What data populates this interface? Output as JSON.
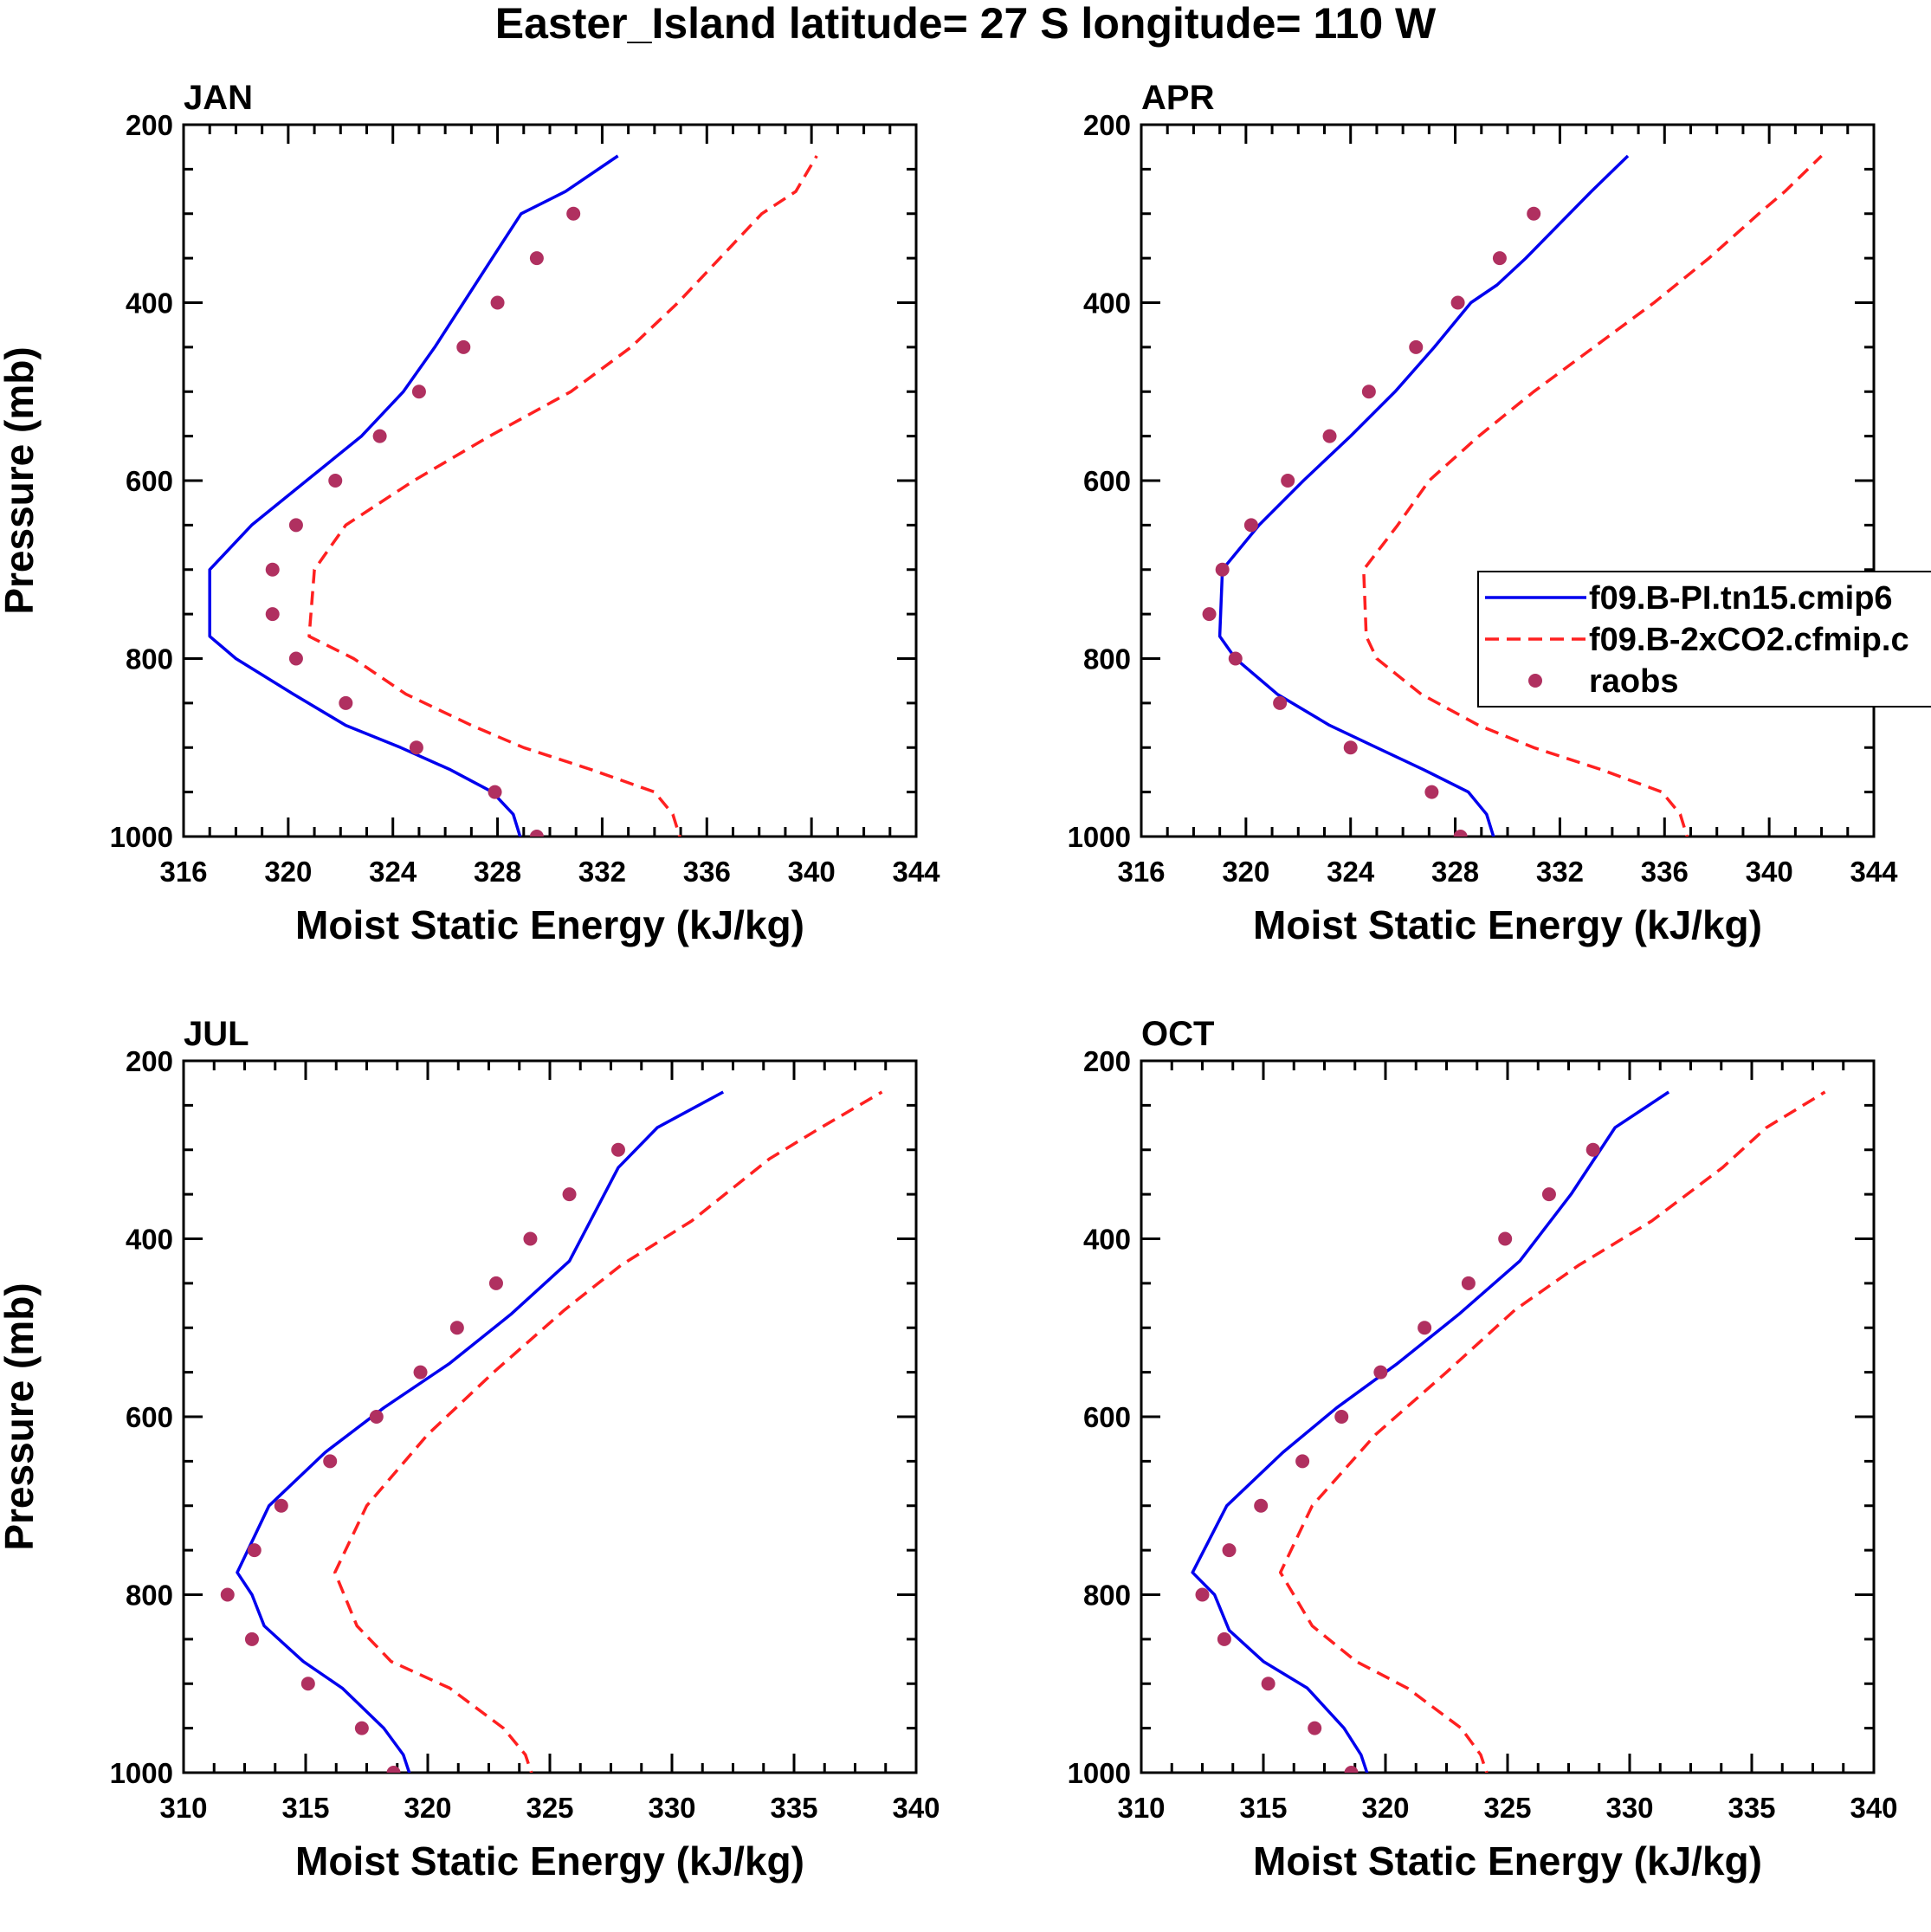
{
  "suptitle": "Easter_Island  latitude= 27 S longitude= 110 W",
  "colors": {
    "pi": "#0000ee",
    "co2": "#ff2020",
    "obs": "#b03060",
    "axis": "#000000"
  },
  "chart_data": [
    {
      "type": "line",
      "title": "JAN",
      "xlabel": "Moist Static Energy (kJ/kg)",
      "ylabel": "Pressure (mb)",
      "xlim": [
        316,
        344
      ],
      "ylim": [
        200,
        1000
      ],
      "y_inverted": true,
      "xticks": [
        316,
        320,
        324,
        328,
        332,
        336,
        340,
        344
      ],
      "yticks": [
        200,
        400,
        600,
        800,
        1000
      ],
      "series": [
        {
          "name": "f09.B-PI.tn15.cmip6",
          "style": "solid",
          "x": [
            329.0,
            328.6,
            327.8,
            326.2,
            324.3,
            322.2,
            320.2,
            318.0,
            317.0,
            317.0,
            318.6,
            320.7,
            322.8,
            324.4,
            325.6,
            326.7,
            327.8,
            328.9,
            330.6,
            332.6
          ],
          "y": [
            1013,
            975,
            950,
            925,
            900,
            875,
            840,
            800,
            775,
            700,
            650,
            600,
            550,
            500,
            450,
            400,
            350,
            300,
            275,
            235
          ]
        },
        {
          "name": "f09.B-2xCO2.cfmip.c",
          "style": "dashed",
          "x": [
            335.1,
            334.7,
            334.0,
            331.6,
            329.0,
            327.0,
            324.5,
            322.5,
            320.8,
            321.0,
            322.2,
            324.8,
            327.7,
            330.8,
            333.1,
            334.9,
            336.5,
            338.1,
            339.4,
            340.2
          ],
          "y": [
            1013,
            975,
            950,
            925,
            900,
            875,
            840,
            800,
            775,
            700,
            650,
            600,
            550,
            500,
            450,
            400,
            350,
            300,
            275,
            235
          ]
        }
      ],
      "points": {
        "name": "raobs",
        "x": [
          329.5,
          327.9,
          324.9,
          322.2,
          320.3,
          319.4,
          319.4,
          320.3,
          321.8,
          323.5,
          325.0,
          326.7,
          328.0,
          329.5,
          330.9
        ],
        "y": [
          1000,
          950,
          900,
          850,
          800,
          750,
          700,
          650,
          600,
          550,
          500,
          450,
          400,
          350,
          300
        ]
      }
    },
    {
      "type": "line",
      "title": "APR",
      "xlabel": "Moist Static Energy (kJ/kg)",
      "ylabel": "",
      "xlim": [
        316,
        344
      ],
      "ylim": [
        200,
        1000
      ],
      "y_inverted": true,
      "xticks": [
        316,
        320,
        324,
        328,
        332,
        336,
        340,
        344
      ],
      "yticks": [
        200,
        400,
        600,
        800,
        1000
      ],
      "series": [
        {
          "name": "f09.B-PI.tn15.cmip6",
          "style": "solid",
          "x": [
            329.6,
            329.2,
            328.5,
            326.8,
            325.0,
            323.2,
            321.2,
            319.6,
            319.0,
            319.1,
            320.5,
            322.2,
            324.0,
            325.7,
            327.2,
            328.6,
            329.6,
            330.7,
            333.2,
            334.6
          ],
          "y": [
            1013,
            975,
            950,
            925,
            900,
            875,
            840,
            800,
            775,
            700,
            650,
            600,
            550,
            500,
            450,
            400,
            380,
            350,
            275,
            235
          ]
        },
        {
          "name": "f09.B-2xCO2.cfmip.c",
          "style": "dashed",
          "x": [
            337.0,
            336.6,
            335.9,
            333.6,
            331.0,
            328.9,
            326.7,
            325.0,
            324.6,
            324.5,
            325.8,
            327.0,
            328.9,
            331.0,
            333.3,
            335.6,
            337.7,
            339.6,
            340.6,
            342.0
          ],
          "y": [
            1013,
            975,
            950,
            925,
            900,
            875,
            840,
            800,
            775,
            700,
            650,
            600,
            550,
            500,
            450,
            400,
            350,
            300,
            275,
            235
          ]
        }
      ],
      "points": {
        "name": "raobs",
        "x": [
          328.2,
          327.1,
          324.0,
          321.3,
          319.6,
          318.6,
          319.1,
          320.2,
          321.6,
          323.2,
          324.7,
          326.5,
          328.1,
          329.7,
          331.0
        ],
        "y": [
          1000,
          950,
          900,
          850,
          800,
          750,
          700,
          650,
          600,
          550,
          500,
          450,
          400,
          350,
          300
        ]
      }
    },
    {
      "type": "line",
      "title": "JUL",
      "xlabel": "Moist Static Energy (kJ/kg)",
      "ylabel": "Pressure (mb)",
      "xlim": [
        310,
        340
      ],
      "ylim": [
        200,
        1000
      ],
      "y_inverted": true,
      "xticks": [
        310,
        315,
        320,
        325,
        330,
        335,
        340
      ],
      "yticks": [
        200,
        400,
        600,
        800,
        1000
      ],
      "series": [
        {
          "name": "f09.B-PI.tn15.cmip6",
          "style": "solid",
          "x": [
            319.4,
            319.0,
            318.2,
            316.5,
            314.9,
            313.3,
            312.8,
            312.2,
            313.5,
            315.8,
            318.2,
            320.9,
            323.4,
            325.8,
            327.8,
            329.4,
            332.1
          ],
          "y": [
            1013,
            980,
            950,
            905,
            875,
            835,
            800,
            775,
            700,
            640,
            590,
            540,
            485,
            425,
            320,
            275,
            235
          ]
        },
        {
          "name": "f09.B-2xCO2.cfmip.c",
          "style": "dashed",
          "x": [
            324.4,
            324.0,
            323.1,
            320.9,
            318.5,
            317.1,
            316.2,
            317.5,
            320.0,
            322.7,
            325.6,
            327.9,
            330.8,
            334.0,
            336.1,
            338.6
          ],
          "y": [
            1013,
            980,
            950,
            905,
            875,
            835,
            775,
            700,
            620,
            550,
            480,
            430,
            380,
            310,
            275,
            235
          ]
        }
      ],
      "points": {
        "name": "raobs",
        "x": [
          318.6,
          317.3,
          315.1,
          312.8,
          311.8,
          312.9,
          314.0,
          316.0,
          317.9,
          319.7,
          321.2,
          322.8,
          324.2,
          325.8,
          327.8
        ],
        "y": [
          1000,
          950,
          900,
          850,
          800,
          750,
          700,
          650,
          600,
          550,
          500,
          450,
          400,
          350,
          300
        ]
      }
    },
    {
      "type": "line",
      "title": "OCT",
      "xlabel": "Moist Static Energy (kJ/kg)",
      "ylabel": "",
      "xlim": [
        310,
        340
      ],
      "ylim": [
        200,
        1000
      ],
      "y_inverted": true,
      "xticks": [
        310,
        315,
        320,
        325,
        330,
        335,
        340
      ],
      "yticks": [
        200,
        400,
        600,
        800,
        1000
      ],
      "series": [
        {
          "name": "f09.B-PI.tn15.cmip6",
          "style": "solid",
          "x": [
            319.4,
            319.0,
            318.3,
            316.8,
            315.0,
            313.6,
            313.0,
            312.1,
            313.5,
            315.8,
            318.0,
            320.5,
            323.0,
            325.5,
            327.6,
            329.4,
            331.6
          ],
          "y": [
            1013,
            980,
            950,
            905,
            875,
            840,
            800,
            775,
            700,
            640,
            590,
            540,
            485,
            425,
            350,
            275,
            235
          ]
        },
        {
          "name": "f09.B-2xCO2.cfmip.c",
          "style": "dashed",
          "x": [
            324.3,
            323.9,
            323.1,
            320.9,
            318.8,
            317.0,
            315.7,
            317.0,
            319.6,
            322.5,
            325.3,
            327.9,
            330.9,
            333.8,
            335.6,
            338.0
          ],
          "y": [
            1013,
            980,
            950,
            905,
            875,
            835,
            775,
            700,
            620,
            550,
            480,
            430,
            380,
            320,
            275,
            235
          ]
        }
      ],
      "points": {
        "name": "raobs",
        "x": [
          318.6,
          317.1,
          315.2,
          313.4,
          312.5,
          313.6,
          314.9,
          316.6,
          318.2,
          319.8,
          321.6,
          323.4,
          324.9,
          326.7,
          328.5
        ],
        "y": [
          1000,
          950,
          900,
          850,
          800,
          750,
          700,
          650,
          600,
          550,
          500,
          450,
          400,
          350,
          300
        ]
      }
    }
  ],
  "legend": {
    "panel": "APR",
    "placement": "right",
    "entries": [
      {
        "label": "f09.B-PI.tn15.cmip6",
        "style": "solid"
      },
      {
        "label": "f09.B-2xCO2.cfmip.c",
        "style": "dashed"
      },
      {
        "label": "raobs",
        "style": "marker"
      }
    ]
  }
}
